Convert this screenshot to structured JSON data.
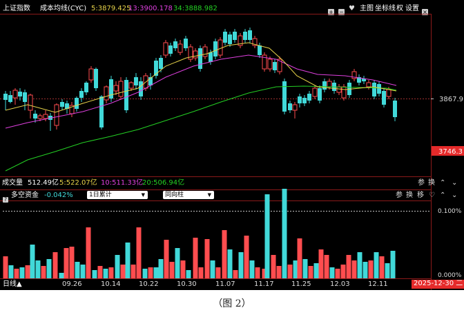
{
  "main_header": {
    "index_name": "上证指数",
    "indicator": "成本均线(CYC)",
    "ma5": "5:3879.425",
    "ma13": "13:3900.178",
    "ma34": "34:3888.982",
    "buttons": {
      "plus": "+",
      "minus": "−",
      "heart": "♥",
      "main": "主图",
      "axis": "坐标线",
      "rights": "权",
      "settings": "设置",
      "close": "×"
    }
  },
  "main_chart": {
    "ref_price": "3867.9",
    "current_price": "3746.3",
    "colors": {
      "up": "#ff4d4f",
      "down": "#41d9d9",
      "ma5": "#e8d44a",
      "ma13": "#e040e0",
      "ma34": "#24d124",
      "ref": "#a03030",
      "border": "#8c1a1a"
    }
  },
  "volume_header": {
    "label": "成交量",
    "total": "512.49亿",
    "ma5": "5:522.07亿",
    "ma10": "10:511.33亿",
    "ma20": "20:506.94亿",
    "buttons": {
      "params": "参",
      "switch": "换",
      "up": "⌃",
      "down": "⌄"
    }
  },
  "flow_header": {
    "label": "多空资金",
    "value": "-0.042%",
    "select1": "1日累计",
    "select2": "同向柱",
    "buttons": {
      "params": "参",
      "switch": "换",
      "move": "移",
      "heart": "♡",
      "up": "⌃",
      "down": "⌄"
    }
  },
  "flow_chart": {
    "ref_top": "0.100%",
    "ref_bottom": "0.000%"
  },
  "timeline": {
    "period": "日线▲",
    "dates": [
      "09.26",
      "10.14",
      "10.22",
      "10.30",
      "11.07",
      "11.17",
      "11.25",
      "12.03",
      "12.11"
    ],
    "current_date": "2025-12-30 二"
  },
  "caption": "（图 2）"
}
